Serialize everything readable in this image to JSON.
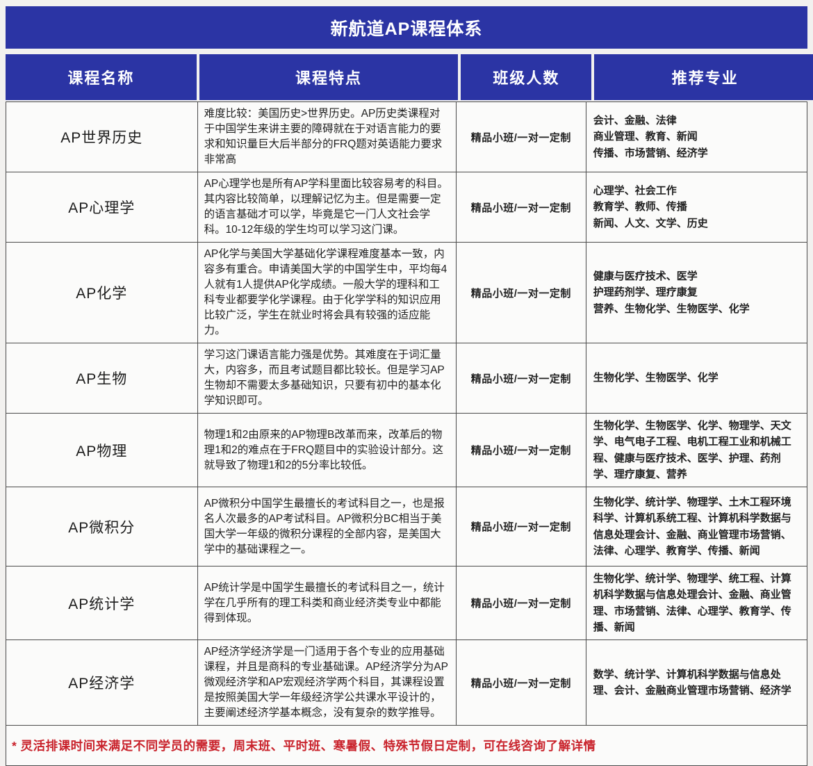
{
  "title": "新航道AP课程体系",
  "columns": {
    "name": "课程名称",
    "features": "课程特点",
    "class_size": "班级人数",
    "majors": "推荐专业"
  },
  "colors": {
    "brand_blue": "#2b34a4",
    "header_text": "#ffffff",
    "footnote_red": "#c9222b",
    "border": "#4a4a4a"
  },
  "rows": [
    {
      "name": "AP世界历史",
      "features": "难度比较：美国历史>世界历史。AP历史类课程对于中国学生来讲主要的障碍就在于对语言能力的要求和知识量巨大后半部分的FRQ题对英语能力要求非常高",
      "class_size": "精品小班/一对一定制",
      "majors": "会计、金融、法律\n商业管理、教育、新闻\n传播、市场营销、经济学",
      "min_height": 88
    },
    {
      "name": "AP心理学",
      "features": "AP心理学也是所有AP学科里面比较容易考的科目。其内容比较简单，以理解记忆为主。但是需要一定的语言基础才可以学，毕竟是它一门人文社会学科。10-12年级的学生均可以学习这门课。",
      "class_size": "精品小班/一对一定制",
      "majors": "心理学、社会工作\n教育学、教师、传播\n新闻、人文、文学、历史",
      "min_height": 99
    },
    {
      "name": "AP化学",
      "features": "AP化学与美国大学基础化学课程难度基本一致，内容多有重合。申请美国大学的中国学生中，平均每4人就有1人提供AP化学成绩。一般大学的理科和工科专业都要学化学课程。由于化学学科的知识应用比较广泛，学生在就业时将会具有较强的适应能力。",
      "class_size": "精品小班/一对一定制",
      "majors": "健康与医疗技术、医学\n护理药剂学、理疗康复\n营养、生物化学、生物医学、化学",
      "min_height": 122
    },
    {
      "name": "AP生物",
      "features": "学习这门课语言能力强是优势。其难度在于词汇量大，内容多，而且考试题目都比较长。但是学习AP生物却不需要太多基础知识，只要有初中的基本化学知识即可。",
      "class_size": "精品小班/一对一定制",
      "majors": "生物化学、生物医学、化学",
      "min_height": 90
    },
    {
      "name": "AP物理",
      "features": "物理1和2由原来的AP物理B改革而来，改革后的物理1和2的难点在于FRQ题目中的实验设计部分。这就导致了物理1和2的5分率比较低。",
      "class_size": "精品小班/一对一定制",
      "majors": "生物化学、生物医学、化学、物理学、天文学、电气电子工程、电机工程工业和机械工程、健康与医疗技术、医学、护理、药剂学、理疗康复、营养",
      "min_height": 99
    },
    {
      "name": "AP微积分",
      "features": "AP微积分中国学生最擅长的考试科目之一，也是报名人次最多的AP考试科目。AP微积分BC相当于美国大学一年级的微积分课程的全部内容，是美国大学中的基础课程之一。",
      "class_size": "精品小班/一对一定制",
      "majors": "生物化学、统计学、物理学、土木工程环境科学、计算机系统工程、计算机科学数据与信息处理会计、金融、商业管理市场营销、法律、心理学、教育学、传播、新闻",
      "min_height": 114
    },
    {
      "name": "AP统计学",
      "features": "AP统计学是中国学生最擅长的考试科目之一，统计学在几乎所有的理工科类和商业经济类专业中都能得到体现。",
      "class_size": "精品小班/一对一定制",
      "majors": "生物化学、统计学、物理学、统工程、计算机科学数据与信息处理会计、金融、商业管理、市场营销、法律、心理学、教育学、传播、新闻",
      "min_height": 92
    },
    {
      "name": "AP经济学",
      "features": "AP经济学经济学是一门适用于各个专业的应用基础课程，并且是商科的专业基础课。AP经济学分为AP微观经济学和AP宏观经济学两个科目，其课程设置是按照美国大学一年级经济学公共课水平设计的，主要阐述经济学基本概念，没有复杂的数学推导。",
      "class_size": "精品小班/一对一定制",
      "majors": "数学、统计学、计算机科学数据与信息处理、会计、金融商业管理市场营销、经济学",
      "min_height": 120
    }
  ],
  "footnote": "* 灵活排课时间来满足不同学员的需要，周末班、平时班、寒暑假、特殊节假日定制，可在线咨询了解详情"
}
